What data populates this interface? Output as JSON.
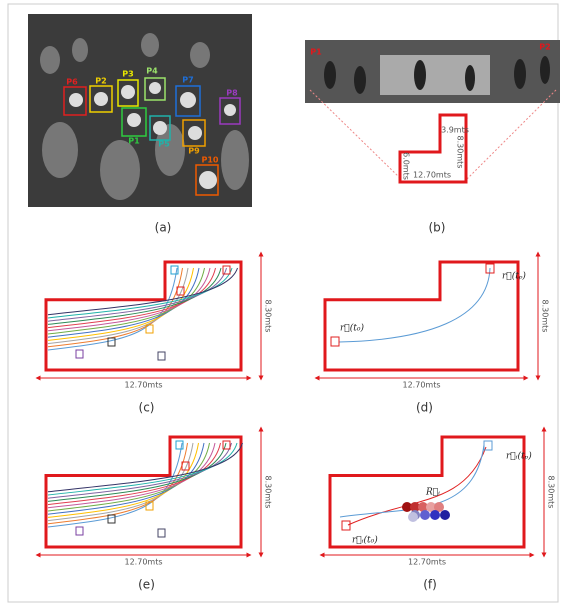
{
  "panels": [
    {
      "label": "(a)",
      "people": [
        "P1",
        "P2",
        "P3",
        "P4",
        "P5",
        "P6",
        "P7",
        "P8",
        "P9",
        "P10"
      ]
    },
    {
      "label": "(b)",
      "dimensions": [
        "3.9mts",
        "8.30mts",
        "12.70mts",
        "6.0mts"
      ],
      "people": [
        "P1",
        "P2"
      ]
    },
    {
      "label": "(c)",
      "width": "12.70mts",
      "height": "8.30mts"
    },
    {
      "label": "(d)",
      "width": "12.70mts",
      "height": "8.30mts",
      "annotations": [
        "r⃗(t₀)",
        "r⃗(tₚ)"
      ]
    },
    {
      "label": "(e)",
      "width": "12.70mts",
      "height": "8.30mts"
    },
    {
      "label": "(f)",
      "width": "12.70mts",
      "height": "8.30mts",
      "annotations": [
        "R⃗ᵢ",
        "r⃗ᵢ(t₀)",
        "r⃗ᵢ(tₚ)"
      ]
    }
  ]
}
